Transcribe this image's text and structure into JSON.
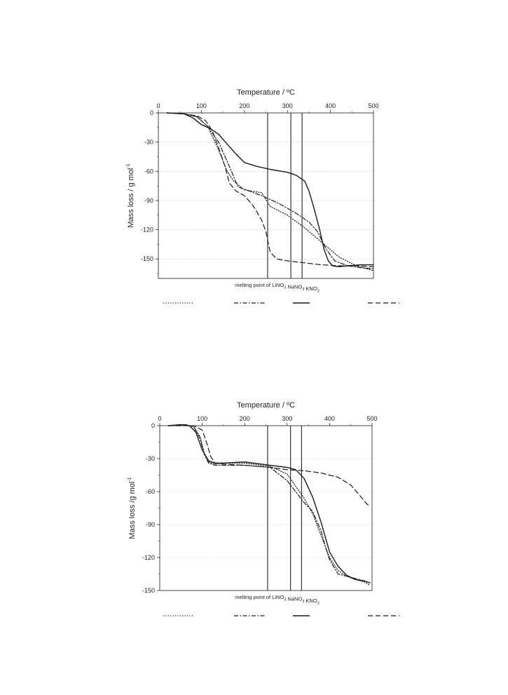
{
  "chart_data": [
    {
      "type": "line",
      "xlabel": "Temperature / ºC",
      "ylabel": "Mass loss  / g mol",
      "ylabel_sup": "-1",
      "xlim": [
        0,
        500
      ],
      "ylim": [
        -170,
        0
      ],
      "xticks": [
        0,
        100,
        200,
        300,
        400,
        500
      ],
      "yticks": [
        0,
        -30,
        -60,
        -90,
        -120,
        -150
      ],
      "grid": true,
      "melting_lines": [
        254,
        308,
        334
      ],
      "melting_label": {
        "prefix": "melting point of ",
        "items": [
          {
            "base": "LiNO",
            "sub": "3"
          },
          {
            "base": "NaNO",
            "sub": "3"
          },
          {
            "base": "KNO",
            "sub": "3"
          }
        ]
      },
      "series": [
        {
          "style": "dotted",
          "x": [
            20,
            60,
            90,
            115,
            140,
            160,
            175,
            200,
            240,
            260,
            300,
            340,
            380,
            420,
            460,
            500
          ],
          "y": [
            0,
            -1,
            -4,
            -14,
            -38,
            -60,
            -70,
            -79,
            -82,
            -96,
            -105,
            -118,
            -133,
            -148,
            -157,
            -162
          ]
        },
        {
          "style": "dashdot",
          "x": [
            20,
            60,
            90,
            115,
            140,
            155,
            170,
            185,
            210,
            240,
            280,
            320,
            350,
            370,
            390,
            410,
            440,
            470,
            500
          ],
          "y": [
            0,
            -1,
            -4,
            -14,
            -30,
            -45,
            -60,
            -76,
            -80,
            -85,
            -93,
            -103,
            -112,
            -122,
            -140,
            -152,
            -157,
            -159,
            -160
          ]
        },
        {
          "style": "solid",
          "x": [
            20,
            60,
            80,
            100,
            120,
            140,
            160,
            180,
            200,
            230,
            260,
            300,
            320,
            340,
            350,
            360,
            375,
            385,
            395,
            405,
            420,
            440,
            470,
            500
          ],
          "y": [
            0,
            -1,
            -5,
            -12,
            -16,
            -22,
            -32,
            -42,
            -51,
            -55,
            -58,
            -61,
            -64,
            -70,
            -80,
            -95,
            -120,
            -140,
            -152,
            -157,
            -158,
            -157,
            -156,
            -156
          ]
        },
        {
          "style": "dashed",
          "x": [
            20,
            60,
            90,
            110,
            125,
            140,
            155,
            165,
            180,
            200,
            220,
            240,
            250,
            260,
            275,
            300,
            340,
            380,
            420,
            460,
            500
          ],
          "y": [
            0,
            -1,
            -3,
            -8,
            -18,
            -36,
            -55,
            -72,
            -80,
            -85,
            -95,
            -110,
            -122,
            -143,
            -150,
            -152,
            -154,
            -156,
            -157,
            -157,
            -158
          ]
        }
      ]
    },
    {
      "type": "line",
      "xlabel": "Temperature / ºC",
      "ylabel": "Mass loss /g mol",
      "ylabel_sup": "-1",
      "xlim": [
        0,
        500
      ],
      "ylim": [
        -150,
        0
      ],
      "xticks": [
        0,
        100,
        200,
        300,
        400,
        500
      ],
      "yticks": [
        0,
        -30,
        -60,
        -90,
        -120,
        -150
      ],
      "grid": true,
      "melting_lines": [
        254,
        308,
        334
      ],
      "melting_label": {
        "prefix": "melting point of ",
        "items": [
          {
            "base": "LiNO",
            "sub": "3"
          },
          {
            "base": "NaNO",
            "sub": "3"
          },
          {
            "base": "KNO",
            "sub": "3"
          }
        ]
      },
      "series": [
        {
          "style": "dotted",
          "x": [
            20,
            60,
            80,
            95,
            105,
            115,
            130,
            150,
            200,
            260,
            300,
            320,
            340,
            360,
            380,
            400,
            420,
            440,
            460,
            480,
            495
          ],
          "y": [
            0,
            1,
            -1,
            -10,
            -25,
            -33,
            -35,
            -34,
            -34,
            -37,
            -44,
            -55,
            -66,
            -80,
            -100,
            -120,
            -132,
            -137,
            -140,
            -142,
            -145
          ]
        },
        {
          "style": "dashdot",
          "x": [
            20,
            60,
            80,
            95,
            105,
            115,
            130,
            150,
            200,
            260,
            300,
            320,
            340,
            360,
            380,
            390,
            400,
            420,
            440,
            460,
            495
          ],
          "y": [
            0,
            1,
            -1,
            -12,
            -26,
            -34,
            -36,
            -36,
            -36,
            -38,
            -50,
            -60,
            -70,
            -78,
            -96,
            -110,
            -122,
            -135,
            -137,
            -139,
            -143
          ]
        },
        {
          "style": "solid",
          "x": [
            20,
            50,
            70,
            85,
            100,
            115,
            130,
            150,
            200,
            260,
            300,
            320,
            340,
            360,
            380,
            400,
            420,
            440,
            460,
            480,
            495
          ],
          "y": [
            0,
            1,
            0,
            -6,
            -22,
            -32,
            -34,
            -34,
            -33,
            -36,
            -38,
            -40,
            -48,
            -65,
            -88,
            -115,
            -128,
            -136,
            -140,
            -141,
            -143
          ]
        },
        {
          "style": "dashed",
          "x": [
            20,
            60,
            80,
            100,
            110,
            120,
            130,
            150,
            200,
            260,
            300,
            340,
            380,
            420,
            450,
            470,
            485,
            495
          ],
          "y": [
            0,
            0,
            0,
            -4,
            -15,
            -28,
            -34,
            -35,
            -36,
            -38,
            -40,
            -41,
            -43,
            -47,
            -54,
            -63,
            -70,
            -74
          ]
        }
      ]
    }
  ]
}
